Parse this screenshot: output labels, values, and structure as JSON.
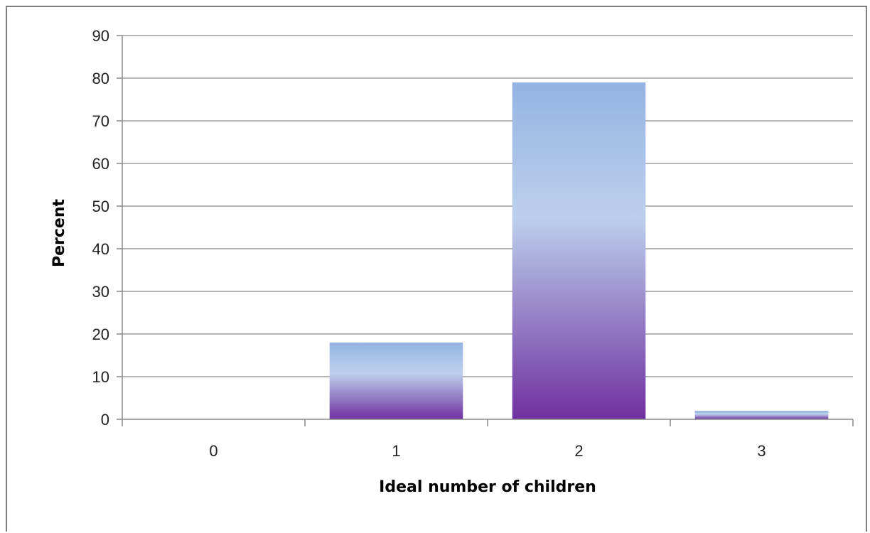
{
  "figure": {
    "title": ""
  },
  "chart_data": {
    "type": "bar",
    "title": "",
    "xlabel": "Ideal number of children",
    "ylabel": "Percent",
    "categories": [
      "0",
      "1",
      "2",
      "3"
    ],
    "values": [
      0,
      18,
      79,
      2
    ],
    "ylim": [
      0,
      90
    ],
    "ytick_step": 10,
    "yticks": [
      "0",
      "10",
      "20",
      "30",
      "40",
      "50",
      "60",
      "70",
      "80",
      "90"
    ],
    "grid": true,
    "legend": "none",
    "colors": {
      "bar_top": "#95b3e3",
      "bar_mid": "#bcd0ec",
      "bar_bottom": "#7030a0",
      "grid": "#888888",
      "axis": "#888888"
    }
  }
}
